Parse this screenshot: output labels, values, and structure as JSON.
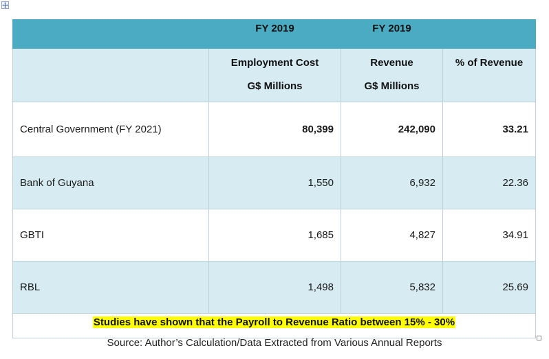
{
  "table": {
    "header_top": [
      "",
      "FY 2019",
      "FY 2019",
      ""
    ],
    "header_sub": [
      {
        "line1": "",
        "line2": ""
      },
      {
        "line1": "Employment Cost",
        "line2": "G$ Millions"
      },
      {
        "line1": "Revenue",
        "line2": "G$ Millions"
      },
      {
        "line1": "% of Revenue",
        "line2": ""
      }
    ],
    "rows": [
      {
        "entity": "Central Government (FY 2021)",
        "employment_cost": "80,399",
        "revenue": "242,090",
        "pct_revenue": "33.21"
      },
      {
        "entity": "Bank of Guyana",
        "employment_cost": "1,550",
        "revenue": "6,932",
        "pct_revenue": "22.36"
      },
      {
        "entity": "GBTI",
        "employment_cost": "1,685",
        "revenue": "4,827",
        "pct_revenue": "34.91"
      },
      {
        "entity": "RBL",
        "employment_cost": "1,498",
        "revenue": "5,832",
        "pct_revenue": "25.69"
      }
    ],
    "note": "Studies have shown that the Payroll to Revenue Ratio between 15% - 30%"
  },
  "source": "Source: Author’s Calculation/Data Extracted from Various Annual Reports",
  "colors": {
    "header_band": "#4babc2",
    "shaded_row": "#d7ecf2",
    "highlight": "#ffff00"
  },
  "icons": {
    "table_move_handle": "move-arrows-icon",
    "table_resize_handle": "resize-square-icon"
  }
}
